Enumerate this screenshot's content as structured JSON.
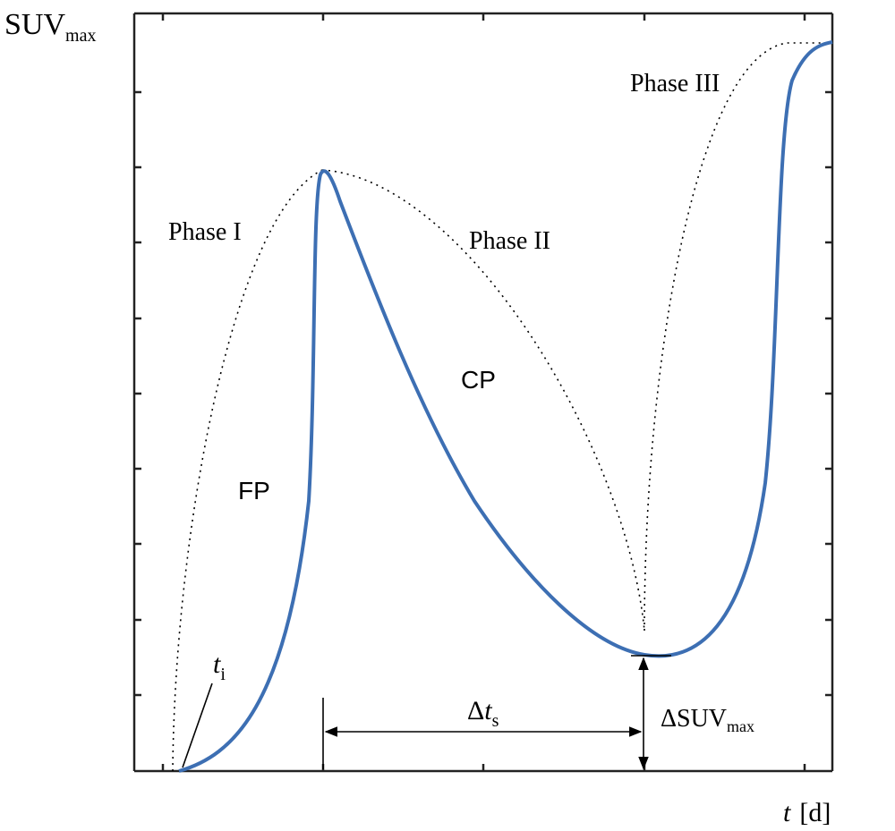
{
  "y_axis_label": {
    "main": "SUV",
    "sub": "max"
  },
  "x_axis_label": {
    "variable": "t",
    "unit": "[d]"
  },
  "phases": [
    "Phase I",
    "Phase II",
    "Phase III"
  ],
  "regions": [
    "FP",
    "CP"
  ],
  "annotations": {
    "t_i": {
      "main": "t",
      "sub": "i"
    },
    "delta_t_s": {
      "delta": "Δ",
      "main": "t",
      "sub": "s"
    },
    "delta_suv_max": {
      "main": "ΔSUV",
      "sub": "max"
    }
  }
}
